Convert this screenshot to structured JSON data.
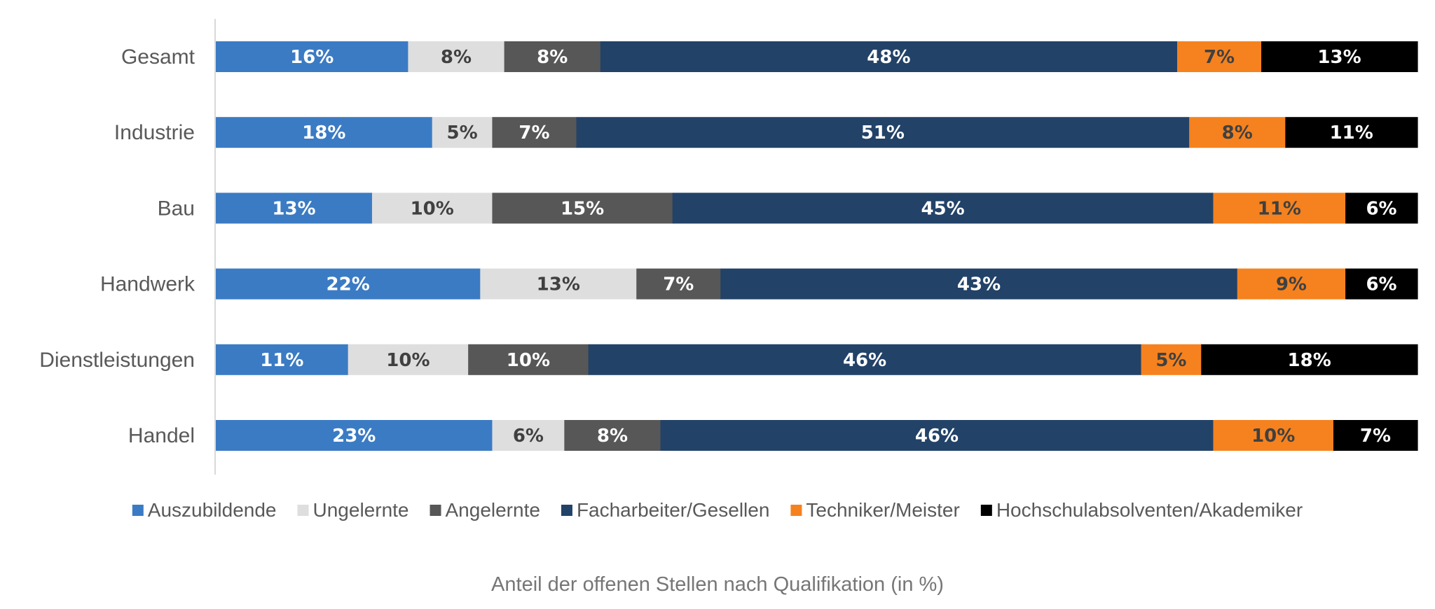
{
  "chart_data": {
    "type": "bar",
    "orientation": "horizontal",
    "stacked": true,
    "normalized": true,
    "categories": [
      "Gesamt",
      "Industrie",
      "Bau",
      "Handwerk",
      "Dienstleistungen",
      "Handel"
    ],
    "series": [
      {
        "name": "Auszubildende",
        "color": "#3b7bc4",
        "label_color": "#ffffff",
        "values": [
          16,
          18,
          13,
          22,
          11,
          23
        ]
      },
      {
        "name": "Ungelernte",
        "color": "#dedede",
        "label_color": "#404040",
        "values": [
          8,
          5,
          10,
          13,
          10,
          6
        ]
      },
      {
        "name": "Angelernte",
        "color": "#575757",
        "label_color": "#ffffff",
        "values": [
          8,
          7,
          15,
          7,
          10,
          8
        ]
      },
      {
        "name": "Facharbeiter/Gesellen",
        "color": "#224268",
        "label_color": "#ffffff",
        "values": [
          48,
          51,
          45,
          43,
          46,
          46
        ]
      },
      {
        "name": "Techniker/Meister",
        "color": "#f5821f",
        "label_color": "#404040",
        "values": [
          7,
          8,
          11,
          9,
          5,
          10
        ]
      },
      {
        "name": "Hochschulabsolventen/Akademiker",
        "color": "#000000",
        "label_color": "#ffffff",
        "values": [
          13,
          11,
          6,
          6,
          18,
          7
        ]
      }
    ],
    "value_suffix": "%",
    "legend_position": "bottom",
    "grid": false,
    "title": "",
    "xlabel": "Anteil der offenen Stellen nach Qualifikation (in %)",
    "ylabel": ""
  }
}
